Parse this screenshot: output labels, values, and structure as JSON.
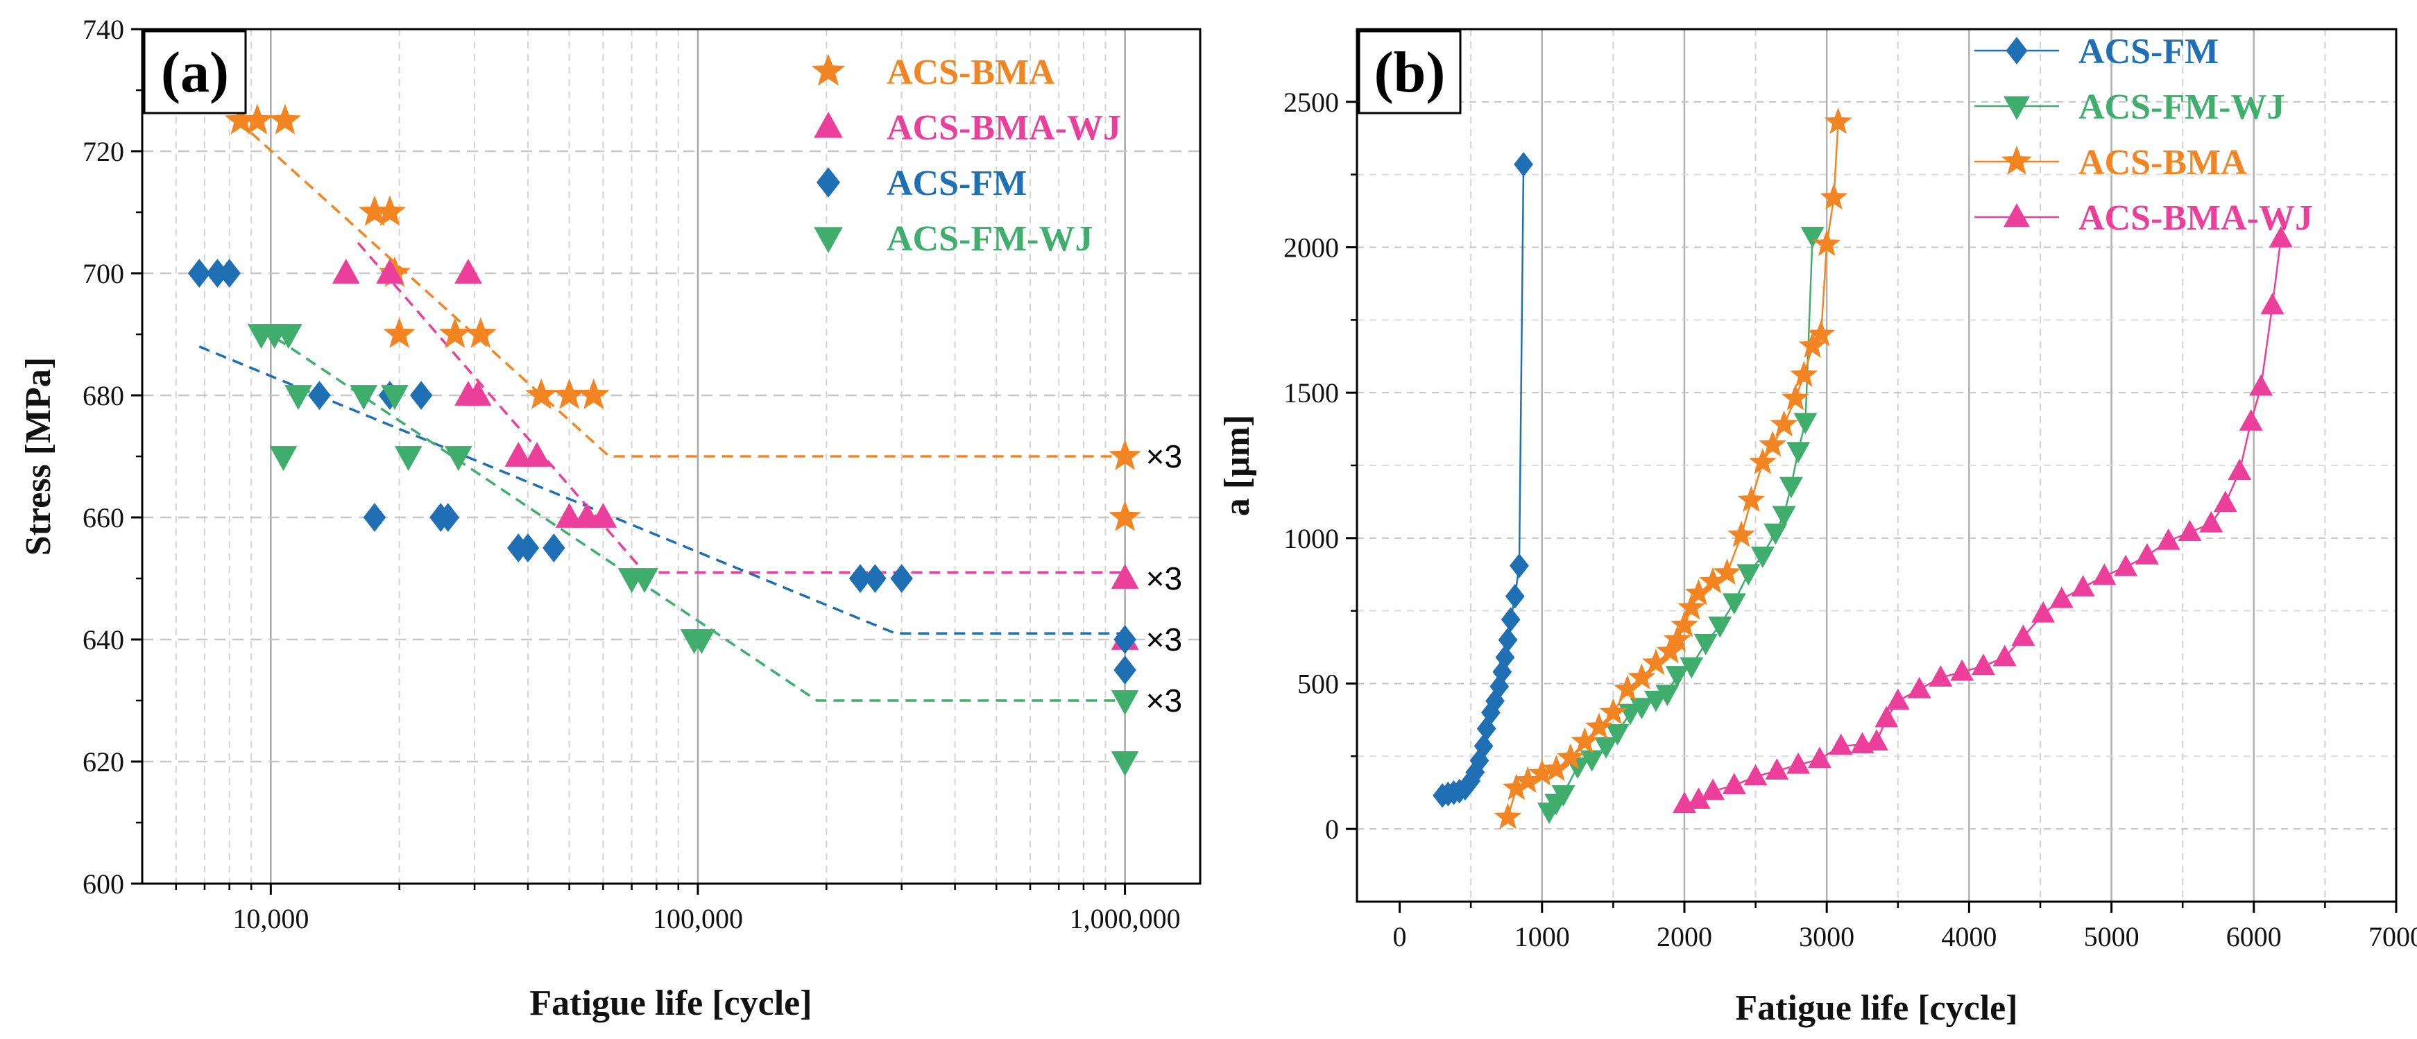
{
  "chart_data": [
    {
      "panel": "(a)",
      "type": "scatter",
      "xlabel": "Fatigue life [cycle]",
      "ylabel": "Stress [MPa]",
      "xscale": "log",
      "xlim": [
        5000,
        1500000
      ],
      "ylim": [
        600,
        740
      ],
      "xticks": [
        10000,
        100000,
        1000000
      ],
      "xtick_labels": [
        "10,000",
        "100,000",
        "1,000,000"
      ],
      "yticks": [
        600,
        620,
        640,
        660,
        680,
        700,
        720,
        740
      ],
      "ytick_labels": [
        "600",
        "620",
        "640",
        "660",
        "680",
        "700",
        "720",
        "740"
      ],
      "grid": true,
      "legend_position": "top-right",
      "series": [
        {
          "name": "ACS-BMA",
          "color": "#F28522",
          "marker": "star",
          "points": [
            [
              8500,
              725
            ],
            [
              9300,
              725
            ],
            [
              10800,
              725
            ],
            [
              17500,
              710
            ],
            [
              19000,
              710
            ],
            [
              19500,
              700
            ],
            [
              20000,
              690
            ],
            [
              27000,
              690
            ],
            [
              31000,
              690
            ],
            [
              43000,
              680
            ],
            [
              50000,
              680
            ],
            [
              57000,
              680
            ],
            [
              1000000,
              670
            ],
            [
              1000000,
              660
            ]
          ]
        },
        {
          "name": "ACS-BMA-WJ",
          "color": "#EC3F9B",
          "marker": "triangle-up",
          "points": [
            [
              15000,
              700
            ],
            [
              19000,
              700
            ],
            [
              29000,
              700
            ],
            [
              29000,
              680
            ],
            [
              30500,
              680
            ],
            [
              38000,
              670
            ],
            [
              42000,
              670
            ],
            [
              50000,
              660
            ],
            [
              55000,
              660
            ],
            [
              60000,
              660
            ],
            [
              1000000,
              650
            ],
            [
              1000000,
              640
            ]
          ]
        },
        {
          "name": "ACS-FM",
          "color": "#1F6FB4",
          "marker": "diamond",
          "points": [
            [
              6800,
              700
            ],
            [
              7500,
              700
            ],
            [
              8000,
              700
            ],
            [
              13000,
              680
            ],
            [
              17500,
              660
            ],
            [
              19000,
              680
            ],
            [
              22500,
              680
            ],
            [
              25000,
              660
            ],
            [
              26000,
              660
            ],
            [
              38000,
              655
            ],
            [
              40000,
              655
            ],
            [
              46000,
              655
            ],
            [
              240000,
              650
            ],
            [
              260000,
              650
            ],
            [
              300000,
              650
            ],
            [
              1000000,
              640
            ],
            [
              1000000,
              635
            ]
          ]
        },
        {
          "name": "ACS-FM-WJ",
          "color": "#3FAE6C",
          "marker": "triangle-down",
          "points": [
            [
              9500,
              690
            ],
            [
              10200,
              690
            ],
            [
              11000,
              690
            ],
            [
              10700,
              670
            ],
            [
              11600,
              680
            ],
            [
              16500,
              680
            ],
            [
              19500,
              680
            ],
            [
              21000,
              670
            ],
            [
              27500,
              670
            ],
            [
              70000,
              650
            ],
            [
              75000,
              650
            ],
            [
              98000,
              640
            ],
            [
              102000,
              640
            ],
            [
              1000000,
              630
            ],
            [
              1000000,
              620
            ]
          ]
        }
      ],
      "trend_lines": [
        {
          "series": "ACS-BMA",
          "points": [
            [
              9000,
              723
            ],
            [
              62000,
              670
            ],
            [
              1000000,
              670
            ]
          ]
        },
        {
          "series": "ACS-BMA-WJ",
          "points": [
            [
              16000,
              705
            ],
            [
              75000,
              651
            ],
            [
              1000000,
              651
            ]
          ]
        },
        {
          "series": "ACS-FM",
          "points": [
            [
              6800,
              688
            ],
            [
              290000,
              641
            ],
            [
              1000000,
              641
            ]
          ]
        },
        {
          "series": "ACS-FM-WJ",
          "points": [
            [
              9500,
              691
            ],
            [
              190000,
              630
            ],
            [
              1000000,
              630
            ]
          ]
        }
      ],
      "annotations": [
        {
          "text": "×3",
          "x": 1000000,
          "y": 670
        },
        {
          "text": "×3",
          "x": 1000000,
          "y": 650
        },
        {
          "text": "×3",
          "x": 1000000,
          "y": 640
        },
        {
          "text": "×3",
          "x": 1000000,
          "y": 630
        }
      ]
    },
    {
      "panel": "(b)",
      "type": "line",
      "xlabel": "Fatigue life [cycle]",
      "ylabel": "a [μm]",
      "xlim": [
        -300,
        7000
      ],
      "ylim": [
        -250,
        2750
      ],
      "xticks": [
        0,
        1000,
        2000,
        3000,
        4000,
        5000,
        6000,
        7000
      ],
      "xtick_labels": [
        "0",
        "1000",
        "2000",
        "3000",
        "4000",
        "5000",
        "6000",
        "7000"
      ],
      "yticks": [
        0,
        500,
        1000,
        1500,
        2000,
        2500
      ],
      "ytick_labels": [
        "0",
        "500",
        "1000",
        "1500",
        "2000",
        "2500"
      ],
      "grid": true,
      "legend_position": "top-right",
      "series": [
        {
          "name": "ACS-FM",
          "color": "#1F6FB4",
          "marker": "diamond",
          "points": [
            [
              300,
              115
            ],
            [
              340,
              120
            ],
            [
              380,
              125
            ],
            [
              420,
              130
            ],
            [
              460,
              140
            ],
            [
              500,
              165
            ],
            [
              530,
              195
            ],
            [
              560,
              235
            ],
            [
              590,
              285
            ],
            [
              610,
              345
            ],
            [
              640,
              400
            ],
            [
              670,
              440
            ],
            [
              700,
              490
            ],
            [
              720,
              540
            ],
            [
              740,
              590
            ],
            [
              760,
              650
            ],
            [
              780,
              720
            ],
            [
              810,
              800
            ],
            [
              840,
              905
            ],
            [
              870,
              2285
            ]
          ]
        },
        {
          "name": "ACS-FM-WJ",
          "color": "#3FAE6C",
          "marker": "triangle-down",
          "points": [
            [
              1050,
              60
            ],
            [
              1100,
              90
            ],
            [
              1150,
              120
            ],
            [
              1250,
              215
            ],
            [
              1350,
              240
            ],
            [
              1450,
              285
            ],
            [
              1530,
              330
            ],
            [
              1620,
              400
            ],
            [
              1700,
              420
            ],
            [
              1800,
              445
            ],
            [
              1880,
              465
            ],
            [
              1950,
              530
            ],
            [
              2050,
              560
            ],
            [
              2150,
              640
            ],
            [
              2250,
              700
            ],
            [
              2350,
              780
            ],
            [
              2450,
              880
            ],
            [
              2550,
              940
            ],
            [
              2640,
              1020
            ],
            [
              2700,
              1080
            ],
            [
              2750,
              1180
            ],
            [
              2800,
              1300
            ],
            [
              2850,
              1400
            ],
            [
              2900,
              2040
            ]
          ]
        },
        {
          "name": "ACS-BMA",
          "color": "#F28522",
          "marker": "star",
          "points": [
            [
              760,
              40
            ],
            [
              820,
              140
            ],
            [
              900,
              165
            ],
            [
              1000,
              190
            ],
            [
              1100,
              205
            ],
            [
              1200,
              245
            ],
            [
              1300,
              300
            ],
            [
              1400,
              350
            ],
            [
              1500,
              400
            ],
            [
              1600,
              480
            ],
            [
              1700,
              520
            ],
            [
              1800,
              570
            ],
            [
              1900,
              610
            ],
            [
              1950,
              650
            ],
            [
              2000,
              700
            ],
            [
              2050,
              760
            ],
            [
              2100,
              810
            ],
            [
              2200,
              850
            ],
            [
              2300,
              880
            ],
            [
              2400,
              1010
            ],
            [
              2470,
              1130
            ],
            [
              2550,
              1260
            ],
            [
              2620,
              1320
            ],
            [
              2700,
              1390
            ],
            [
              2780,
              1480
            ],
            [
              2840,
              1560
            ],
            [
              2900,
              1660
            ],
            [
              2960,
              1700
            ],
            [
              3000,
              2010
            ],
            [
              3050,
              2170
            ],
            [
              3080,
              2430
            ]
          ]
        },
        {
          "name": "ACS-BMA-WJ",
          "color": "#EC3F9B",
          "marker": "triangle-up",
          "points": [
            [
              2000,
              85
            ],
            [
              2100,
              100
            ],
            [
              2200,
              130
            ],
            [
              2350,
              150
            ],
            [
              2500,
              180
            ],
            [
              2650,
              200
            ],
            [
              2800,
              220
            ],
            [
              2950,
              240
            ],
            [
              3100,
              285
            ],
            [
              3250,
              290
            ],
            [
              3350,
              300
            ],
            [
              3420,
              380
            ],
            [
              3500,
              440
            ],
            [
              3650,
              480
            ],
            [
              3800,
              520
            ],
            [
              3950,
              540
            ],
            [
              4100,
              560
            ],
            [
              4250,
              590
            ],
            [
              4380,
              660
            ],
            [
              4520,
              740
            ],
            [
              4650,
              790
            ],
            [
              4800,
              830
            ],
            [
              4950,
              870
            ],
            [
              5100,
              900
            ],
            [
              5250,
              940
            ],
            [
              5400,
              990
            ],
            [
              5550,
              1020
            ],
            [
              5700,
              1050
            ],
            [
              5800,
              1120
            ],
            [
              5900,
              1230
            ],
            [
              5980,
              1400
            ],
            [
              6050,
              1520
            ],
            [
              6130,
              1800
            ],
            [
              6190,
              2030
            ]
          ]
        }
      ]
    }
  ]
}
